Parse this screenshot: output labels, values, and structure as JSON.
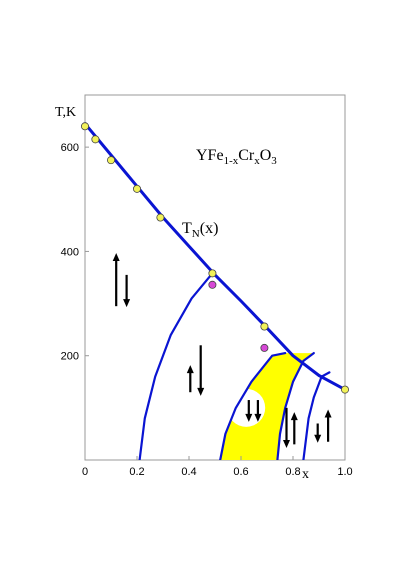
{
  "chart_data": {
    "type": "scatter",
    "title": "YFe1-xCrxO3",
    "title_parts": {
      "base1": "YFe",
      "sub1": "1-x",
      "base2": "Cr",
      "sub2": "x",
      "base3": "O",
      "sub3": "3"
    },
    "xlabel": "x",
    "ylabel": "T,K",
    "curve_label": {
      "base": "T",
      "sub": "N",
      "rest": "(x)"
    },
    "xlim": [
      0,
      1.0
    ],
    "ylim": [
      0,
      700
    ],
    "x_ticks": [
      0,
      0.2,
      0.4,
      0.6,
      0.8,
      1.0
    ],
    "x_tick_labels": [
      "0",
      "0.2",
      "0.4",
      "0.6",
      "0.8",
      "1.0"
    ],
    "y_ticks": [
      200,
      400,
      600
    ],
    "y_tick_labels": [
      "200",
      "400",
      "600"
    ],
    "grid": false,
    "colors": {
      "curve": "#0a14d2",
      "region_fill": "#ffff00",
      "point_yellow": "#f2f25a",
      "point_magenta": "#d648d6",
      "axis": "#999999"
    },
    "series": [
      {
        "marker": "yellow-circle",
        "points": [
          {
            "x": 0.0,
            "y": 640
          },
          {
            "x": 0.04,
            "y": 615
          },
          {
            "x": 0.1,
            "y": 575
          },
          {
            "x": 0.2,
            "y": 520
          },
          {
            "x": 0.29,
            "y": 465
          },
          {
            "x": 0.49,
            "y": 358
          },
          {
            "x": 0.69,
            "y": 256
          },
          {
            "x": 1.0,
            "y": 135
          }
        ]
      },
      {
        "marker": "magenta-circle",
        "points": [
          {
            "x": 0.49,
            "y": 336
          },
          {
            "x": 0.69,
            "y": 215
          }
        ]
      }
    ],
    "curves": {
      "TN": [
        [
          0.0,
          645
        ],
        [
          0.1,
          585
        ],
        [
          0.2,
          525
        ],
        [
          0.3,
          465
        ],
        [
          0.4,
          410
        ],
        [
          0.5,
          355
        ],
        [
          0.6,
          305
        ],
        [
          0.7,
          253
        ],
        [
          0.8,
          200
        ],
        [
          0.9,
          162
        ],
        [
          1.0,
          135
        ]
      ],
      "boundary1": [
        [
          0.21,
          0
        ],
        [
          0.23,
          80
        ],
        [
          0.27,
          160
        ],
        [
          0.33,
          240
        ],
        [
          0.41,
          310
        ],
        [
          0.49,
          358
        ]
      ],
      "boundary2": [
        [
          0.52,
          0
        ],
        [
          0.54,
          50
        ],
        [
          0.58,
          100
        ],
        [
          0.64,
          150
        ],
        [
          0.72,
          200
        ],
        [
          0.77,
          205
        ]
      ],
      "boundary3": [
        [
          0.74,
          0
        ],
        [
          0.75,
          50
        ],
        [
          0.77,
          100
        ],
        [
          0.8,
          150
        ],
        [
          0.84,
          190
        ],
        [
          0.88,
          205
        ]
      ],
      "boundary4": [
        [
          0.84,
          0
        ],
        [
          0.85,
          40
        ],
        [
          0.86,
          80
        ],
        [
          0.88,
          120
        ],
        [
          0.91,
          160
        ],
        [
          0.94,
          168
        ]
      ]
    },
    "arrows": [
      {
        "x": 0.12,
        "y_from": 295,
        "y_to": 395
      },
      {
        "x": 0.16,
        "y_from": 355,
        "y_to": 295
      },
      {
        "x": 0.405,
        "y_from": 130,
        "y_to": 180
      },
      {
        "x": 0.445,
        "y_from": 220,
        "y_to": 125
      },
      {
        "x": 0.63,
        "y_from": 115,
        "y_to": 75
      },
      {
        "x": 0.665,
        "y_from": 115,
        "y_to": 75
      },
      {
        "x": 0.775,
        "y_from": 100,
        "y_to": 25
      },
      {
        "x": 0.805,
        "y_from": 30,
        "y_to": 90
      },
      {
        "x": 0.895,
        "y_from": 70,
        "y_to": 35
      },
      {
        "x": 0.935,
        "y_from": 35,
        "y_to": 95
      }
    ]
  }
}
